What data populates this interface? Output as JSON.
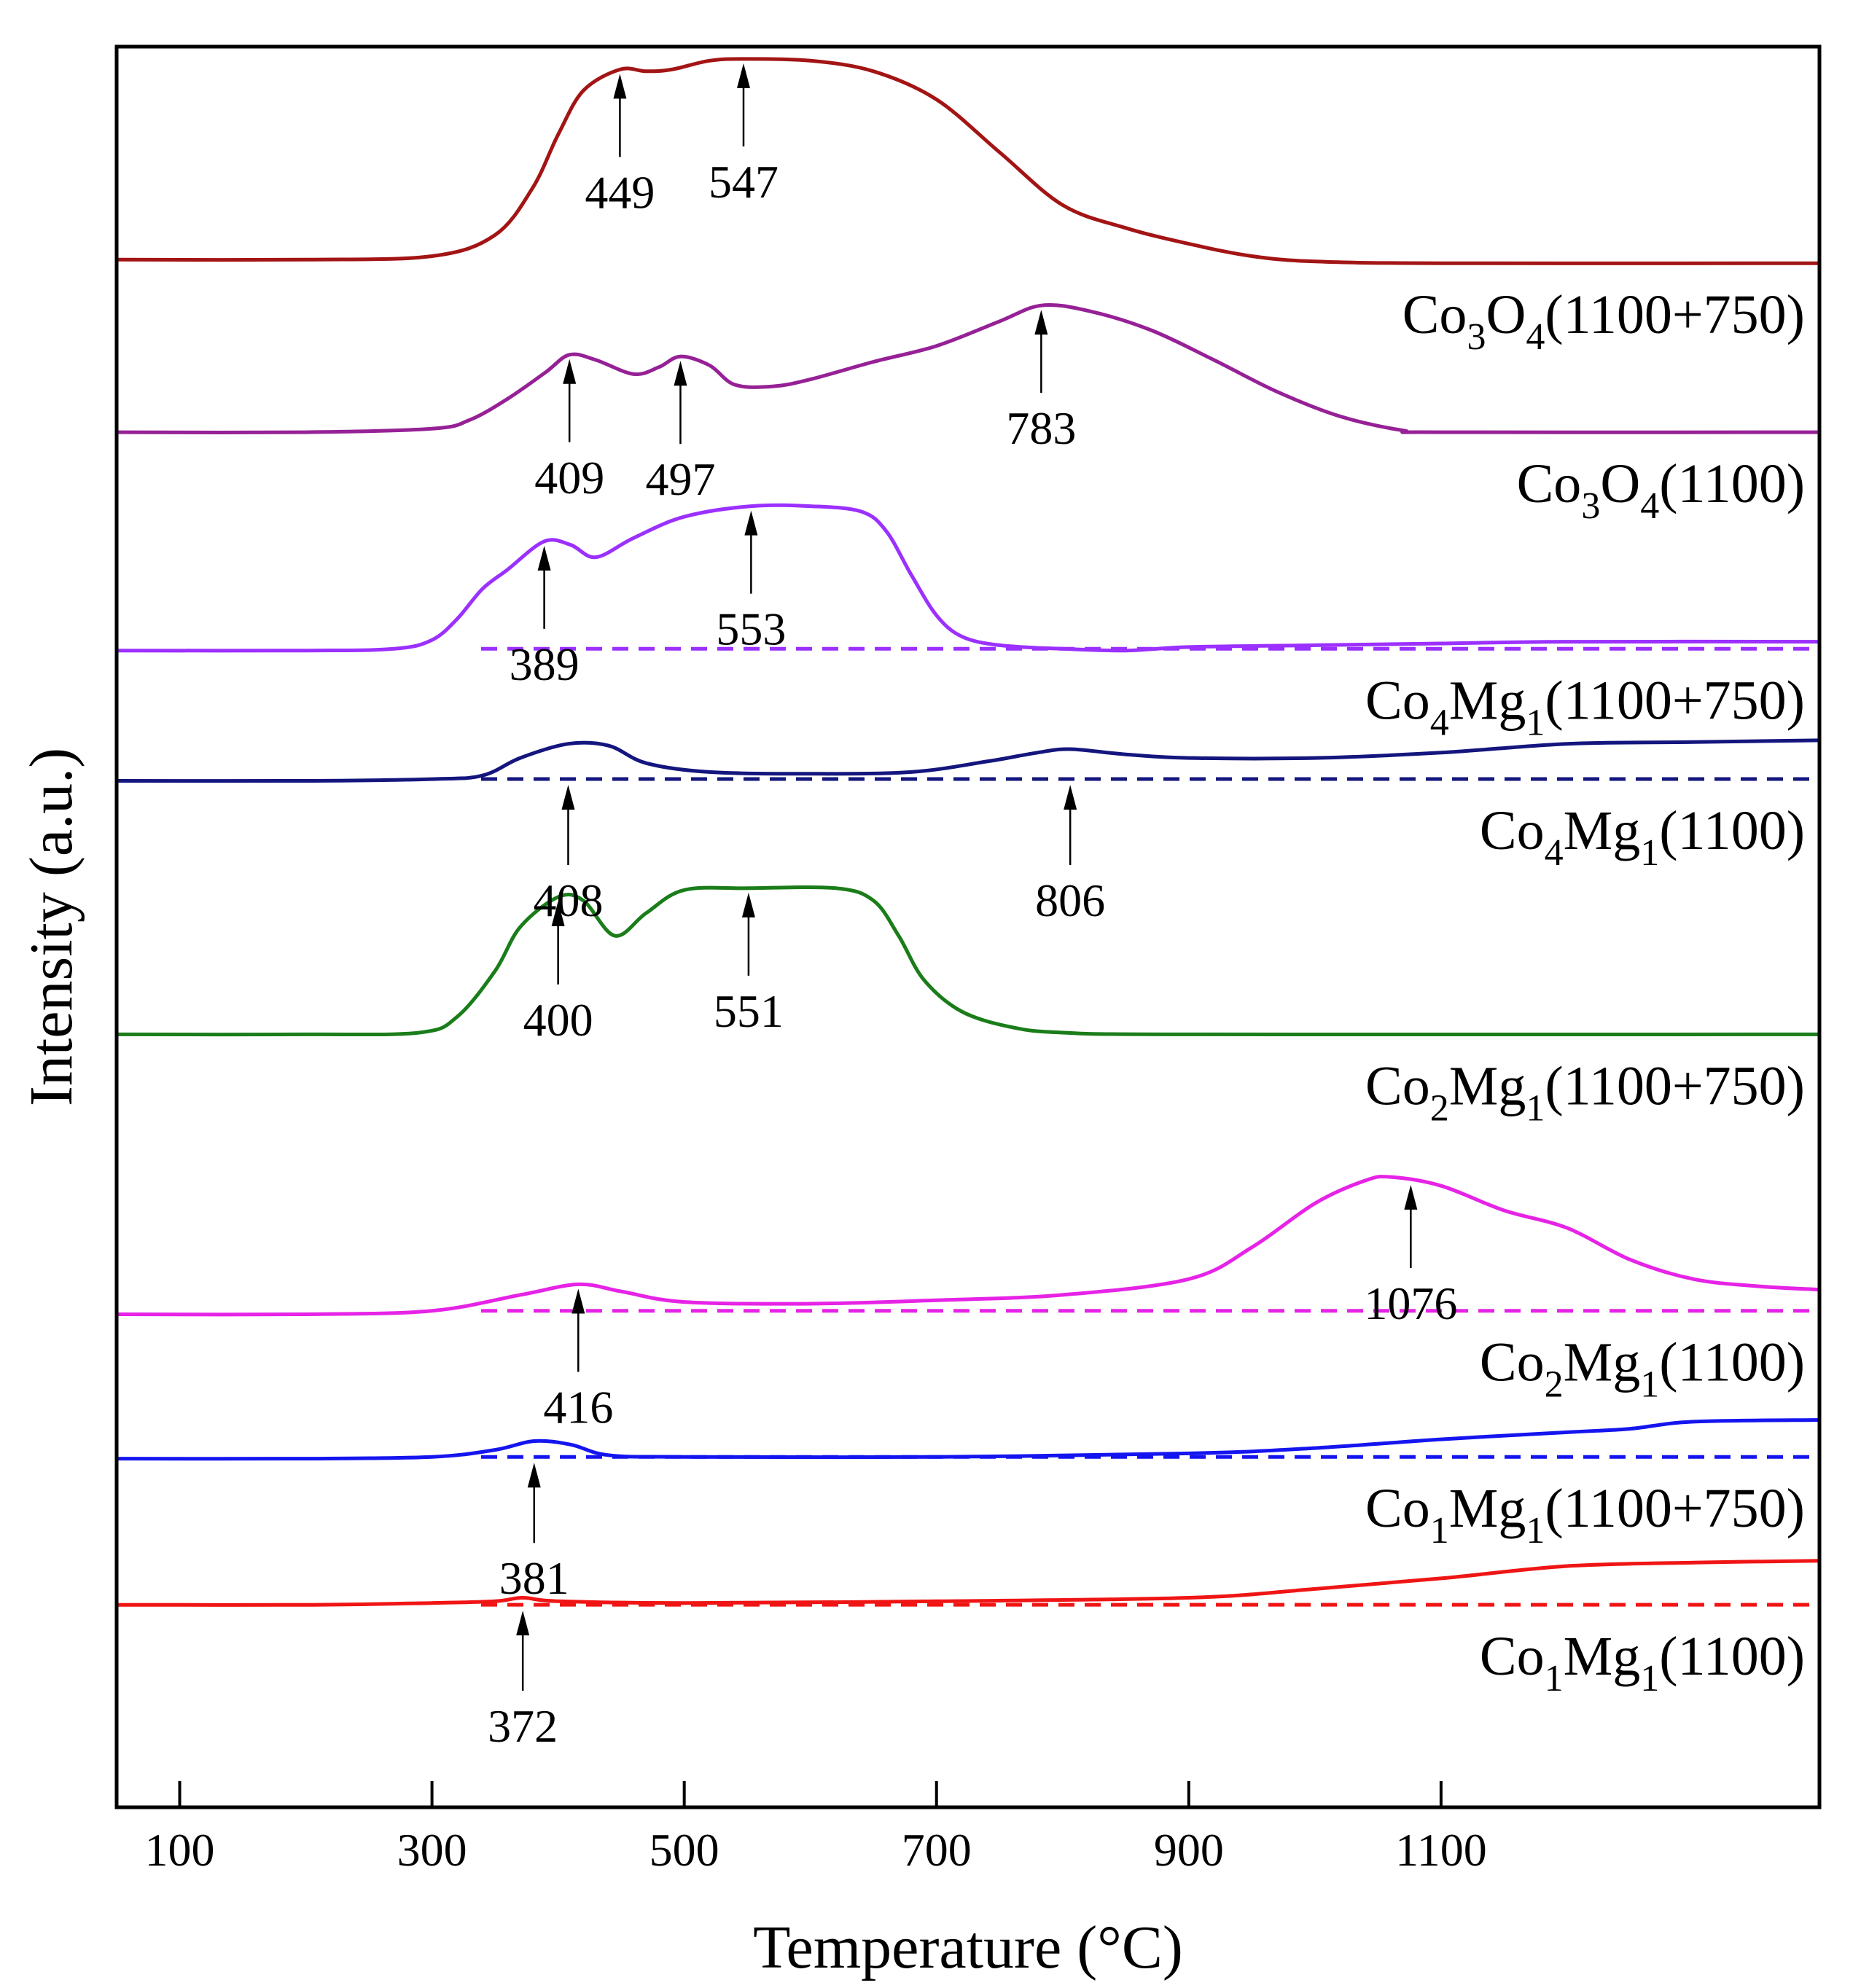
{
  "chart_data": {
    "type": "line",
    "title": "",
    "xlabel": "Temperature (°C)",
    "ylabel": "Intensity (a.u.)",
    "xlim": [
      50,
      1400
    ],
    "x_ticks": [
      100,
      300,
      500,
      700,
      900,
      1100
    ],
    "x_tick_labels": [
      "100",
      "300",
      "500",
      "700",
      "900",
      "1100"
    ],
    "y_ticks_shown": false,
    "y_range_normalized": [
      0,
      100
    ],
    "series": [
      {
        "name": "Co3O4(1100+750)",
        "label_main": "Co",
        "label_sub1": "3",
        "label_mid": "O",
        "label_sub2": "4",
        "label_tail": "(1100+750)",
        "color": "#a31515",
        "baseline": null,
        "points": [
          [
            50,
            87.9
          ],
          [
            200,
            87.9
          ],
          [
            300,
            88.1
          ],
          [
            350,
            89.3
          ],
          [
            380,
            92.0
          ],
          [
            400,
            95.0
          ],
          [
            420,
            97.5
          ],
          [
            449,
            98.7
          ],
          [
            470,
            98.6
          ],
          [
            490,
            98.7
          ],
          [
            520,
            99.2
          ],
          [
            547,
            99.3
          ],
          [
            600,
            99.2
          ],
          [
            650,
            98.6
          ],
          [
            700,
            97.0
          ],
          [
            750,
            94.0
          ],
          [
            800,
            91.0
          ],
          [
            850,
            89.7
          ],
          [
            900,
            88.8
          ],
          [
            950,
            88.1
          ],
          [
            1000,
            87.8
          ],
          [
            1100,
            87.7
          ],
          [
            1400,
            87.7
          ]
        ],
        "peaks": [
          449,
          547
        ],
        "peak_labels": [
          "449",
          "547"
        ]
      },
      {
        "name": "Co3O4(1100)",
        "label_main": "Co",
        "label_sub1": "3",
        "label_mid": "O",
        "label_sub2": "4",
        "label_tail": "(1100)",
        "color": "#962196",
        "baseline": null,
        "points": [
          [
            50,
            78.1
          ],
          [
            200,
            78.1
          ],
          [
            300,
            78.3
          ],
          [
            330,
            78.8
          ],
          [
            360,
            80.0
          ],
          [
            390,
            81.5
          ],
          [
            409,
            82.5
          ],
          [
            430,
            82.2
          ],
          [
            460,
            81.4
          ],
          [
            480,
            81.8
          ],
          [
            497,
            82.4
          ],
          [
            520,
            81.9
          ],
          [
            540,
            80.8
          ],
          [
            570,
            80.7
          ],
          [
            600,
            81.1
          ],
          [
            650,
            82.1
          ],
          [
            700,
            83.0
          ],
          [
            750,
            84.4
          ],
          [
            783,
            85.3
          ],
          [
            820,
            85.0
          ],
          [
            870,
            83.9
          ],
          [
            920,
            82.2
          ],
          [
            970,
            80.4
          ],
          [
            1020,
            79.0
          ],
          [
            1070,
            78.2
          ],
          [
            1100,
            78.1
          ],
          [
            1400,
            78.1
          ]
        ],
        "peaks": [
          409,
          497,
          783
        ],
        "peak_labels": [
          "409",
          "497",
          "783"
        ]
      },
      {
        "name": "Co4Mg1(1100+750)",
        "label_main": "Co",
        "label_sub1": "4",
        "label_mid": "Mg",
        "label_sub2": "1",
        "label_tail": "(1100+750)",
        "color": "#9b30ff",
        "baseline": 65.8,
        "points": [
          [
            50,
            65.7
          ],
          [
            200,
            65.7
          ],
          [
            270,
            65.8
          ],
          [
            300,
            66.3
          ],
          [
            320,
            67.5
          ],
          [
            340,
            69.2
          ],
          [
            360,
            70.3
          ],
          [
            389,
            71.9
          ],
          [
            410,
            71.7
          ],
          [
            430,
            71.0
          ],
          [
            460,
            72.1
          ],
          [
            500,
            73.3
          ],
          [
            553,
            73.9
          ],
          [
            600,
            73.9
          ],
          [
            640,
            73.6
          ],
          [
            660,
            72.5
          ],
          [
            680,
            70.0
          ],
          [
            700,
            67.7
          ],
          [
            720,
            66.5
          ],
          [
            750,
            66.0
          ],
          [
            800,
            65.8
          ],
          [
            850,
            65.7
          ],
          [
            900,
            65.9
          ],
          [
            1000,
            66.0
          ],
          [
            1100,
            66.1
          ],
          [
            1200,
            66.2
          ],
          [
            1400,
            66.2
          ]
        ],
        "peaks": [
          389,
          553
        ],
        "peak_labels": [
          "389",
          "553"
        ]
      },
      {
        "name": "Co4Mg1(1100)",
        "label_main": "Co",
        "label_sub1": "4",
        "label_mid": "Mg",
        "label_sub2": "1",
        "label_tail": "(1100)",
        "color": "#14167e",
        "baseline": 58.4,
        "points": [
          [
            50,
            58.3
          ],
          [
            200,
            58.3
          ],
          [
            300,
            58.4
          ],
          [
            340,
            58.6
          ],
          [
            370,
            59.6
          ],
          [
            408,
            60.4
          ],
          [
            440,
            60.3
          ],
          [
            470,
            59.3
          ],
          [
            520,
            58.8
          ],
          [
            600,
            58.7
          ],
          [
            680,
            58.8
          ],
          [
            740,
            59.4
          ],
          [
            780,
            59.9
          ],
          [
            806,
            60.1
          ],
          [
            850,
            59.8
          ],
          [
            900,
            59.6
          ],
          [
            1000,
            59.6
          ],
          [
            1100,
            59.9
          ],
          [
            1200,
            60.4
          ],
          [
            1300,
            60.5
          ],
          [
            1400,
            60.6
          ]
        ],
        "peaks": [
          408,
          806
        ],
        "peak_labels": [
          "408",
          "806"
        ]
      },
      {
        "name": "Co2Mg1(1100+750)",
        "label_main": "Co",
        "label_sub1": "2",
        "label_mid": "Mg",
        "label_sub2": "1",
        "label_tail": "(1100+750)",
        "color": "#1a7d1a",
        "baseline": null,
        "points": [
          [
            50,
            43.9
          ],
          [
            200,
            43.9
          ],
          [
            290,
            44.0
          ],
          [
            320,
            44.9
          ],
          [
            350,
            47.5
          ],
          [
            370,
            50.0
          ],
          [
            400,
            51.7
          ],
          [
            420,
            51.5
          ],
          [
            445,
            49.5
          ],
          [
            470,
            50.8
          ],
          [
            500,
            52.1
          ],
          [
            551,
            52.2
          ],
          [
            620,
            52.2
          ],
          [
            650,
            51.5
          ],
          [
            670,
            49.5
          ],
          [
            690,
            47.0
          ],
          [
            720,
            45.2
          ],
          [
            760,
            44.3
          ],
          [
            800,
            44.0
          ],
          [
            900,
            43.9
          ],
          [
            1400,
            43.9
          ]
        ],
        "peaks": [
          400,
          551
        ],
        "peak_labels": [
          "400",
          "551"
        ]
      },
      {
        "name": "Co2Mg1(1100)",
        "label_main": "Co",
        "label_sub1": "2",
        "label_mid": "Mg",
        "label_sub2": "1",
        "label_tail": "(1100)",
        "color": "#e623e6",
        "baseline": 28.2,
        "points": [
          [
            50,
            28.0
          ],
          [
            200,
            28.0
          ],
          [
            300,
            28.2
          ],
          [
            370,
            29.1
          ],
          [
            416,
            29.7
          ],
          [
            450,
            29.3
          ],
          [
            500,
            28.7
          ],
          [
            600,
            28.6
          ],
          [
            700,
            28.8
          ],
          [
            800,
            29.1
          ],
          [
            900,
            30.0
          ],
          [
            950,
            31.8
          ],
          [
            1000,
            34.3
          ],
          [
            1040,
            35.6
          ],
          [
            1060,
            35.8
          ],
          [
            1100,
            35.3
          ],
          [
            1150,
            33.9
          ],
          [
            1200,
            32.9
          ],
          [
            1250,
            31.1
          ],
          [
            1300,
            30.0
          ],
          [
            1350,
            29.6
          ],
          [
            1400,
            29.4
          ]
        ],
        "peaks": [
          416,
          1076
        ],
        "peak_labels": [
          "416",
          "1076"
        ]
      },
      {
        "name": "Co1Mg1(1100+750)",
        "label_main": "Co",
        "label_sub1": "1",
        "label_mid": "Mg",
        "label_sub2": "1",
        "label_tail": "(1100+750)",
        "color": "#1515f0",
        "baseline": 19.9,
        "points": [
          [
            50,
            19.8
          ],
          [
            200,
            19.8
          ],
          [
            300,
            19.9
          ],
          [
            350,
            20.3
          ],
          [
            381,
            20.8
          ],
          [
            410,
            20.6
          ],
          [
            440,
            20.0
          ],
          [
            500,
            19.9
          ],
          [
            700,
            19.9
          ],
          [
            900,
            20.1
          ],
          [
            1000,
            20.4
          ],
          [
            1100,
            20.9
          ],
          [
            1200,
            21.3
          ],
          [
            1250,
            21.5
          ],
          [
            1300,
            21.9
          ],
          [
            1400,
            22.0
          ]
        ],
        "peaks": [
          381
        ],
        "peak_labels": [
          "381"
        ]
      },
      {
        "name": "Co1Mg1(1100)",
        "label_main": "Co",
        "label_sub1": "1",
        "label_mid": "Mg",
        "label_sub2": "1",
        "label_tail": "(1100)",
        "color": "#f01515",
        "baseline": 11.5,
        "points": [
          [
            50,
            11.5
          ],
          [
            200,
            11.5
          ],
          [
            300,
            11.6
          ],
          [
            350,
            11.7
          ],
          [
            372,
            11.9
          ],
          [
            400,
            11.7
          ],
          [
            500,
            11.6
          ],
          [
            700,
            11.7
          ],
          [
            900,
            11.9
          ],
          [
            1000,
            12.4
          ],
          [
            1100,
            13.0
          ],
          [
            1200,
            13.7
          ],
          [
            1300,
            13.9
          ],
          [
            1400,
            14.0
          ]
        ],
        "peaks": [
          372
        ],
        "peak_labels": [
          "372"
        ]
      }
    ]
  }
}
